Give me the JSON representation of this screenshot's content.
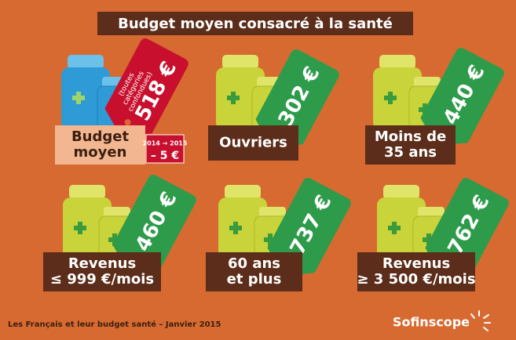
{
  "header": {
    "title": "Budget moyen consacré à la santé"
  },
  "panels": [
    {
      "label": [
        "Budget",
        "moyen"
      ],
      "price": "518 €",
      "note": [
        "(toutes",
        "catégories",
        "confondues)"
      ],
      "change_period": "2014 → 2015",
      "change": "– 5 €"
    },
    {
      "label": [
        "Ouvriers"
      ],
      "price": "302 €"
    },
    {
      "label": [
        "Moins de",
        "35 ans"
      ],
      "price": "440 €"
    },
    {
      "label": [
        "Revenus",
        "≤ 999 €/mois"
      ],
      "price": "460 €"
    },
    {
      "label": [
        "60 ans",
        "et plus"
      ],
      "price": "737 €"
    },
    {
      "label": [
        "Revenus",
        "≥ 3 500 €/mois"
      ],
      "price": "762 €"
    }
  ],
  "footer": {
    "source": "Les Français et leur budget santé – Janvier 2015",
    "brand": "Sofinscope"
  }
}
